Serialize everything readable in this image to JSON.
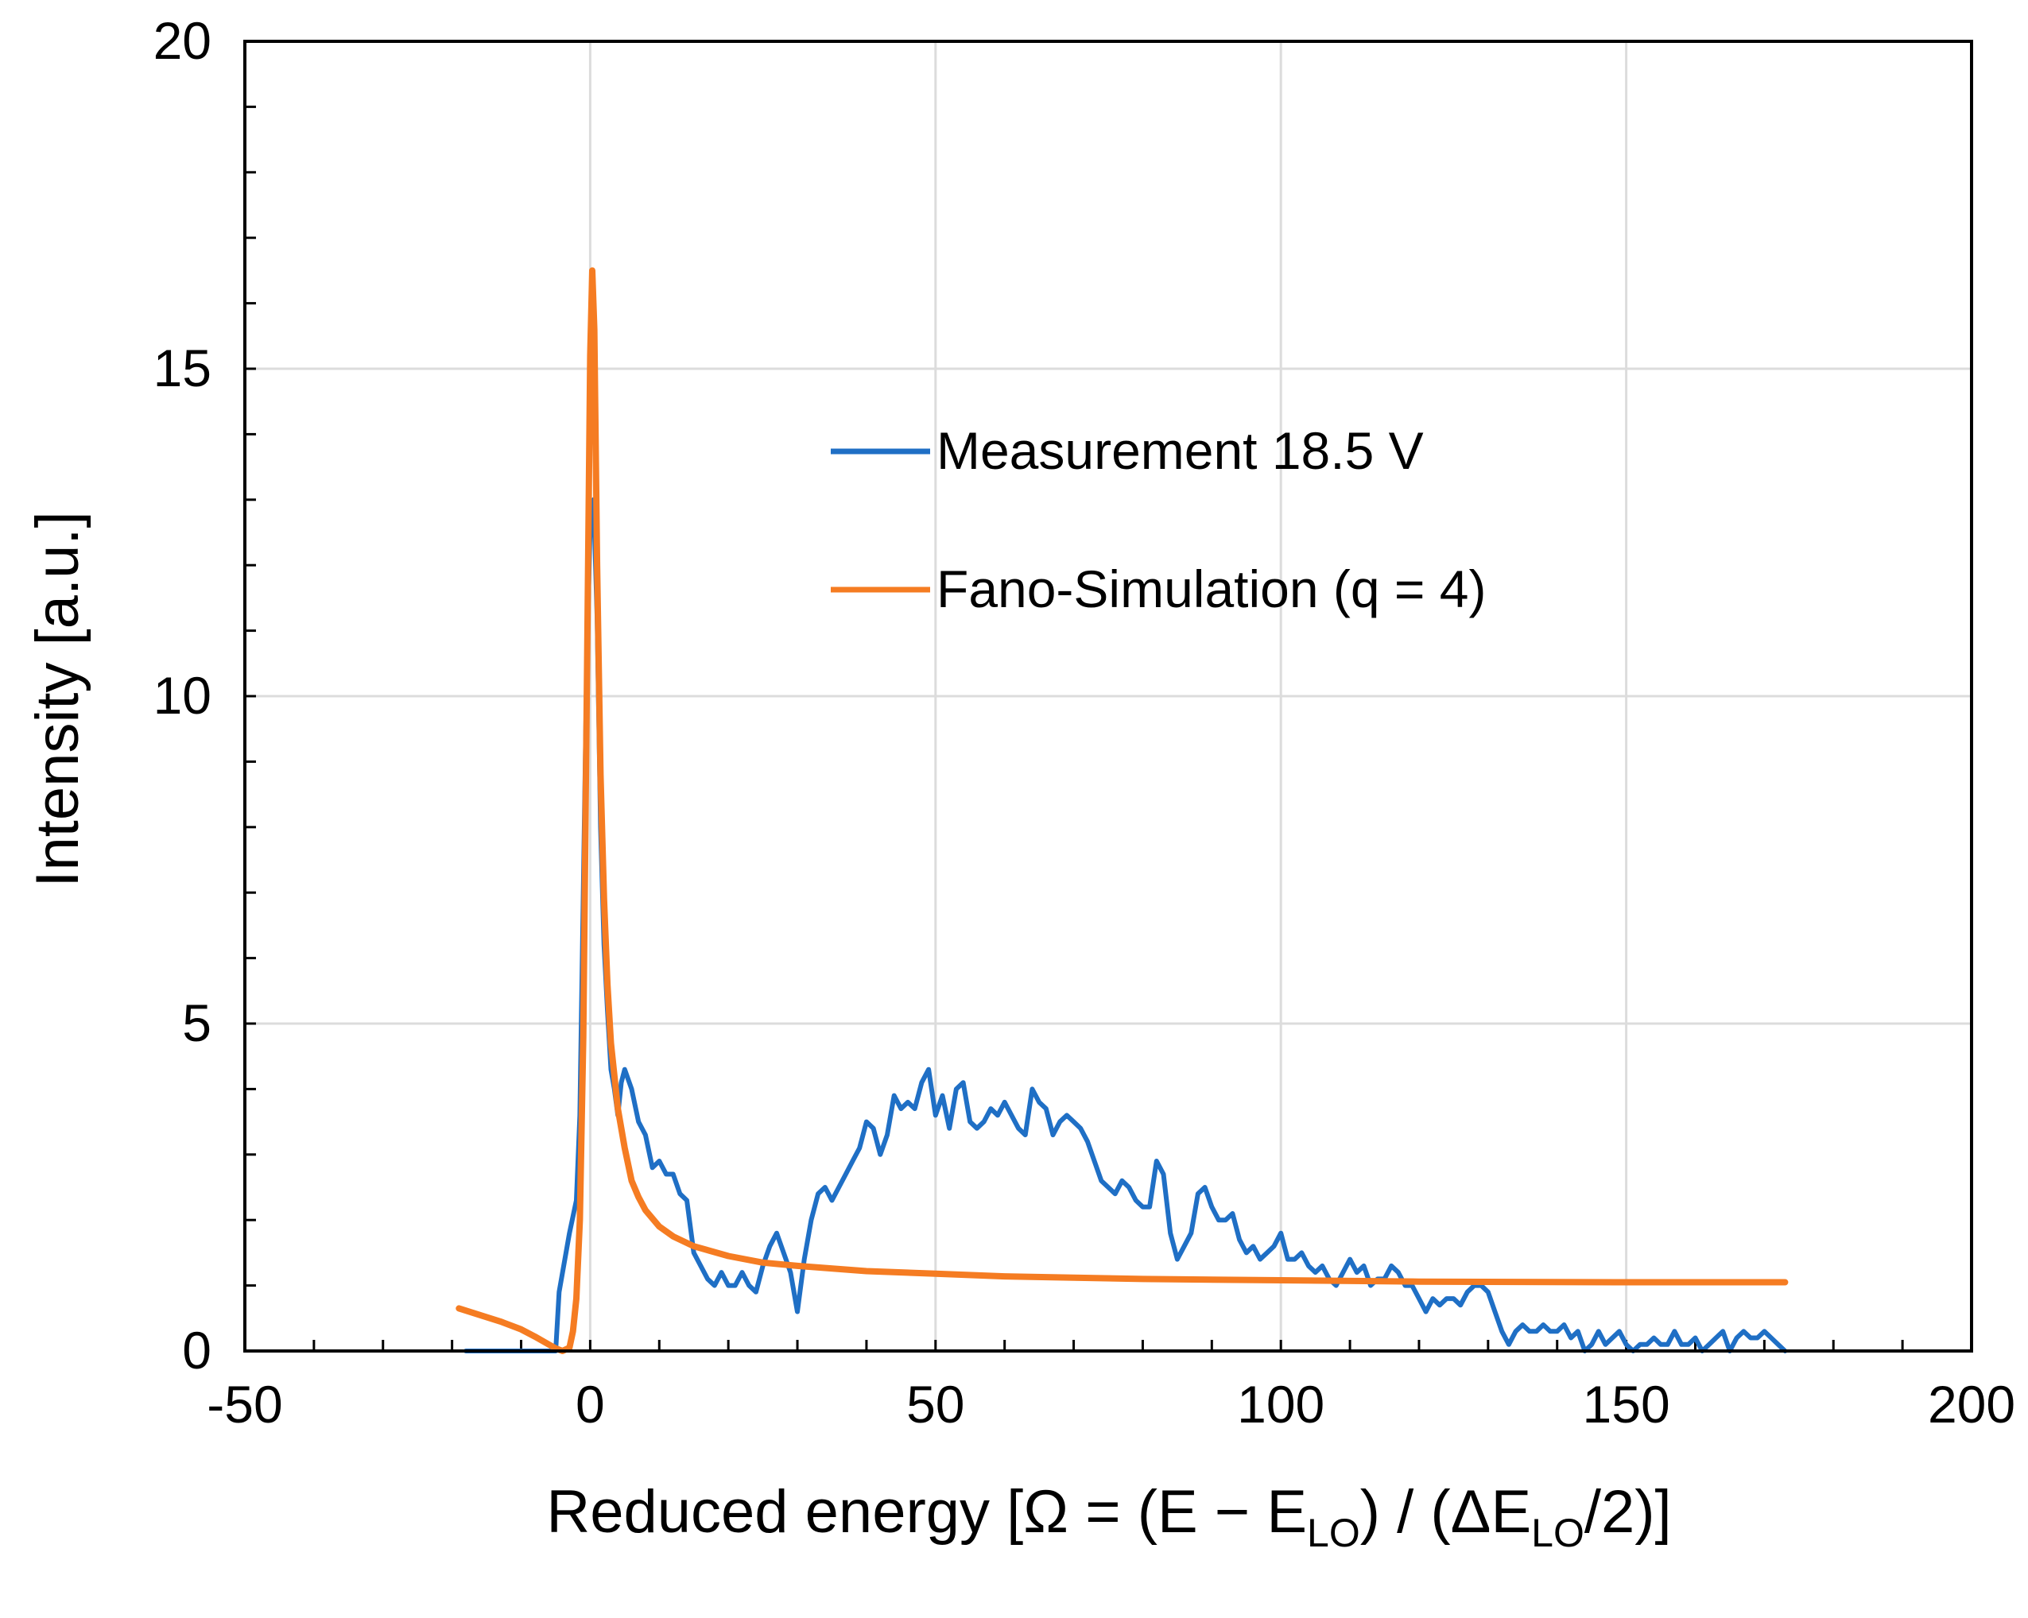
{
  "chart_data": {
    "type": "line",
    "title": "",
    "xlabel": {
      "main": "Reduced energy [Ω = (E − E",
      "sub1": "LO",
      "mid": ") / (ΔE",
      "sub2": "LO",
      "end": "/2)]"
    },
    "ylabel": "Intensity [a.u.]",
    "xlim": [
      -50,
      200
    ],
    "ylim": [
      0,
      20
    ],
    "xticks": [
      -50,
      0,
      50,
      100,
      150,
      200
    ],
    "yticks": [
      0,
      5,
      10,
      15,
      20
    ],
    "x_minor_step": 10,
    "y_minor_step": 1,
    "grid": true,
    "legend_position": "upper-center",
    "series": [
      {
        "name": "Measurement 18.5 V",
        "color": "#1f6fc5",
        "points": [
          [
            -18,
            0.0
          ],
          [
            -6,
            0.0
          ],
          [
            -5,
            0.0
          ],
          [
            -4.5,
            0.9
          ],
          [
            -3,
            1.8
          ],
          [
            -2,
            2.3
          ],
          [
            -1.5,
            3.6
          ],
          [
            -1,
            7.0
          ],
          [
            -0.5,
            10.5
          ],
          [
            0,
            12.6
          ],
          [
            0.5,
            13.0
          ],
          [
            1,
            11.2
          ],
          [
            1.5,
            8.0
          ],
          [
            2,
            6.2
          ],
          [
            2.5,
            5.2
          ],
          [
            3,
            4.3
          ],
          [
            3.5,
            4.0
          ],
          [
            4,
            3.6
          ],
          [
            4.5,
            4.1
          ],
          [
            5,
            4.3
          ],
          [
            6,
            4.0
          ],
          [
            7,
            3.5
          ],
          [
            8,
            3.3
          ],
          [
            9,
            2.8
          ],
          [
            10,
            2.9
          ],
          [
            11,
            2.7
          ],
          [
            12,
            2.7
          ],
          [
            13,
            2.4
          ],
          [
            14,
            2.3
          ],
          [
            15,
            1.5
          ],
          [
            16,
            1.3
          ],
          [
            17,
            1.1
          ],
          [
            18,
            1.0
          ],
          [
            19,
            1.2
          ],
          [
            20,
            1.0
          ],
          [
            21,
            1.0
          ],
          [
            22,
            1.2
          ],
          [
            23,
            1.0
          ],
          [
            24,
            0.9
          ],
          [
            25,
            1.3
          ],
          [
            26,
            1.6
          ],
          [
            27,
            1.8
          ],
          [
            28,
            1.5
          ],
          [
            29,
            1.2
          ],
          [
            30,
            0.6
          ],
          [
            31,
            1.4
          ],
          [
            32,
            2.0
          ],
          [
            33,
            2.4
          ],
          [
            34,
            2.5
          ],
          [
            35,
            2.3
          ],
          [
            36,
            2.5
          ],
          [
            37,
            2.7
          ],
          [
            38,
            2.9
          ],
          [
            39,
            3.1
          ],
          [
            40,
            3.5
          ],
          [
            41,
            3.4
          ],
          [
            42,
            3.0
          ],
          [
            43,
            3.3
          ],
          [
            44,
            3.9
          ],
          [
            45,
            3.7
          ],
          [
            46,
            3.8
          ],
          [
            47,
            3.7
          ],
          [
            48,
            4.1
          ],
          [
            49,
            4.3
          ],
          [
            50,
            3.6
          ],
          [
            51,
            3.9
          ],
          [
            52,
            3.4
          ],
          [
            53,
            4.0
          ],
          [
            54,
            4.1
          ],
          [
            55,
            3.5
          ],
          [
            56,
            3.4
          ],
          [
            57,
            3.5
          ],
          [
            58,
            3.7
          ],
          [
            59,
            3.6
          ],
          [
            60,
            3.8
          ],
          [
            61,
            3.6
          ],
          [
            62,
            3.4
          ],
          [
            63,
            3.3
          ],
          [
            64,
            4.0
          ],
          [
            65,
            3.8
          ],
          [
            66,
            3.7
          ],
          [
            67,
            3.3
          ],
          [
            68,
            3.5
          ],
          [
            69,
            3.6
          ],
          [
            70,
            3.5
          ],
          [
            71,
            3.4
          ],
          [
            72,
            3.2
          ],
          [
            73,
            2.9
          ],
          [
            74,
            2.6
          ],
          [
            75,
            2.5
          ],
          [
            76,
            2.4
          ],
          [
            77,
            2.6
          ],
          [
            78,
            2.5
          ],
          [
            79,
            2.3
          ],
          [
            80,
            2.2
          ],
          [
            81,
            2.2
          ],
          [
            82,
            2.9
          ],
          [
            83,
            2.7
          ],
          [
            84,
            1.8
          ],
          [
            85,
            1.4
          ],
          [
            86,
            1.6
          ],
          [
            87,
            1.8
          ],
          [
            88,
            2.4
          ],
          [
            89,
            2.5
          ],
          [
            90,
            2.2
          ],
          [
            91,
            2.0
          ],
          [
            92,
            2.0
          ],
          [
            93,
            2.1
          ],
          [
            94,
            1.7
          ],
          [
            95,
            1.5
          ],
          [
            96,
            1.6
          ],
          [
            97,
            1.4
          ],
          [
            98,
            1.5
          ],
          [
            99,
            1.6
          ],
          [
            100,
            1.8
          ],
          [
            101,
            1.4
          ],
          [
            102,
            1.4
          ],
          [
            103,
            1.5
          ],
          [
            104,
            1.3
          ],
          [
            105,
            1.2
          ],
          [
            106,
            1.3
          ],
          [
            107,
            1.1
          ],
          [
            108,
            1.0
          ],
          [
            109,
            1.2
          ],
          [
            110,
            1.4
          ],
          [
            111,
            1.2
          ],
          [
            112,
            1.3
          ],
          [
            113,
            1.0
          ],
          [
            114,
            1.1
          ],
          [
            115,
            1.1
          ],
          [
            116,
            1.3
          ],
          [
            117,
            1.2
          ],
          [
            118,
            1.0
          ],
          [
            119,
            1.0
          ],
          [
            120,
            0.8
          ],
          [
            121,
            0.6
          ],
          [
            122,
            0.8
          ],
          [
            123,
            0.7
          ],
          [
            124,
            0.8
          ],
          [
            125,
            0.8
          ],
          [
            126,
            0.7
          ],
          [
            127,
            0.9
          ],
          [
            128,
            1.0
          ],
          [
            129,
            1.0
          ],
          [
            130,
            0.9
          ],
          [
            131,
            0.6
          ],
          [
            132,
            0.3
          ],
          [
            133,
            0.1
          ],
          [
            134,
            0.3
          ],
          [
            135,
            0.4
          ],
          [
            136,
            0.3
          ],
          [
            137,
            0.3
          ],
          [
            138,
            0.4
          ],
          [
            139,
            0.3
          ],
          [
            140,
            0.3
          ],
          [
            141,
            0.4
          ],
          [
            142,
            0.2
          ],
          [
            143,
            0.3
          ],
          [
            144,
            0.0
          ],
          [
            145,
            0.1
          ],
          [
            146,
            0.3
          ],
          [
            147,
            0.1
          ],
          [
            148,
            0.2
          ],
          [
            149,
            0.3
          ],
          [
            150,
            0.1
          ],
          [
            151,
            0.0
          ],
          [
            152,
            0.1
          ],
          [
            153,
            0.1
          ],
          [
            154,
            0.2
          ],
          [
            155,
            0.1
          ],
          [
            156,
            0.1
          ],
          [
            157,
            0.3
          ],
          [
            158,
            0.1
          ],
          [
            159,
            0.1
          ],
          [
            160,
            0.2
          ],
          [
            161,
            0.0
          ],
          [
            162,
            0.1
          ],
          [
            163,
            0.2
          ],
          [
            164,
            0.3
          ],
          [
            165,
            0.0
          ],
          [
            166,
            0.2
          ],
          [
            167,
            0.3
          ],
          [
            168,
            0.2
          ],
          [
            169,
            0.2
          ],
          [
            170,
            0.3
          ],
          [
            171,
            0.2
          ],
          [
            172,
            0.1
          ],
          [
            173,
            0.0
          ]
        ]
      },
      {
        "name": "Fano-Simulation (q = 4)",
        "color": "#f57c22",
        "points": [
          [
            -19,
            0.65
          ],
          [
            -16,
            0.55
          ],
          [
            -13,
            0.45
          ],
          [
            -10,
            0.33
          ],
          [
            -8,
            0.22
          ],
          [
            -6,
            0.1
          ],
          [
            -5,
            0.04
          ],
          [
            -4,
            0.0
          ],
          [
            -3,
            0.05
          ],
          [
            -2.5,
            0.3
          ],
          [
            -2,
            0.8
          ],
          [
            -1.5,
            2.0
          ],
          [
            -1,
            4.8
          ],
          [
            -0.5,
            10.0
          ],
          [
            0,
            15.2
          ],
          [
            0.3,
            16.5
          ],
          [
            0.6,
            15.6
          ],
          [
            1,
            12.0
          ],
          [
            1.5,
            8.8
          ],
          [
            2,
            6.9
          ],
          [
            2.5,
            5.6
          ],
          [
            3,
            4.7
          ],
          [
            4,
            3.7
          ],
          [
            5,
            3.1
          ],
          [
            6,
            2.6
          ],
          [
            7,
            2.35
          ],
          [
            8,
            2.15
          ],
          [
            10,
            1.9
          ],
          [
            12,
            1.75
          ],
          [
            15,
            1.6
          ],
          [
            20,
            1.45
          ],
          [
            25,
            1.35
          ],
          [
            30,
            1.3
          ],
          [
            40,
            1.22
          ],
          [
            50,
            1.18
          ],
          [
            60,
            1.14
          ],
          [
            70,
            1.12
          ],
          [
            80,
            1.1
          ],
          [
            100,
            1.08
          ],
          [
            120,
            1.06
          ],
          [
            150,
            1.05
          ],
          [
            173,
            1.05
          ]
        ]
      }
    ]
  }
}
